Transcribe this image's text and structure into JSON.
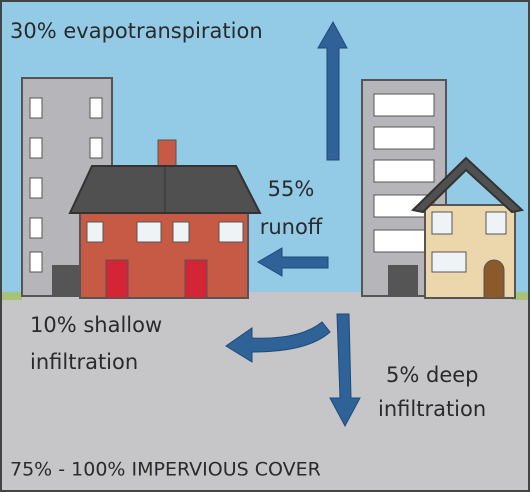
{
  "flows": [
    {
      "lines": [
        "30% evapotranspiration"
      ]
    },
    {
      "lines": [
        "55%",
        "runoff"
      ]
    },
    {
      "lines": [
        "10% shallow",
        "infiltration"
      ]
    },
    {
      "lines": [
        "5% deep",
        "infiltration"
      ]
    }
  ],
  "caption": "75% - 100% IMPERVIOUS COVER"
}
